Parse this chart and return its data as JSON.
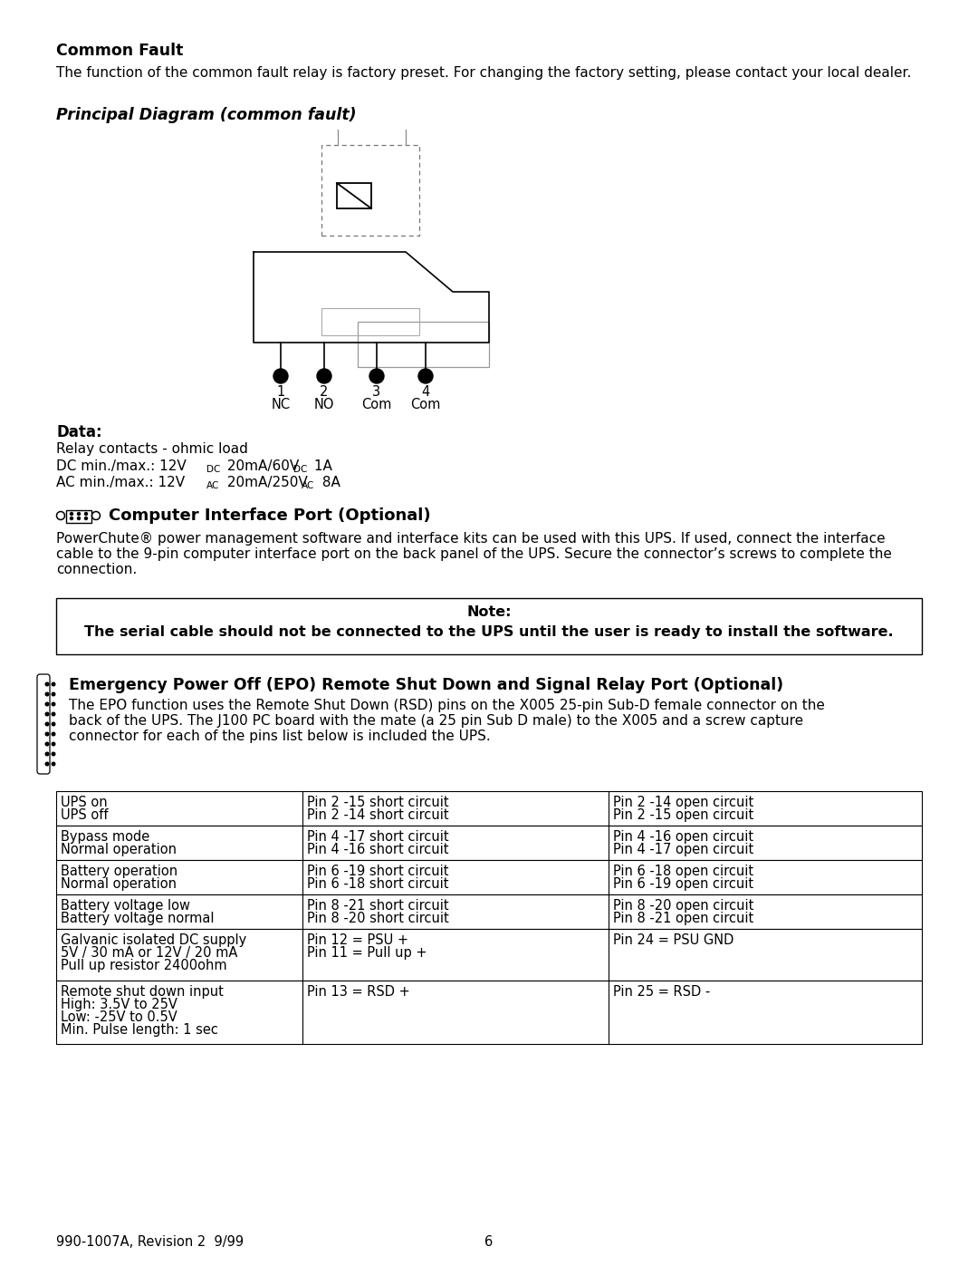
{
  "title": "Common Fault",
  "subtitle": "The function of the common fault relay is factory preset. For changing the factory setting, please contact your local dealer.",
  "section2_title": "Principal Diagram (common fault)",
  "data_section_title": "Data:",
  "computer_section_title": "Computer Interface Port (Optional)",
  "computer_text_line1": "PowerChute® power management software and interface kits can be used with this UPS. If used, connect the interface",
  "computer_text_line2": "cable to the 9-pin computer interface port on the back panel of the UPS. Secure the connector’s screws to complete the",
  "computer_text_line3": "connection.",
  "note_label": "Note:",
  "note_text": "The serial cable should not be connected to the UPS until the user is ready to install the software.",
  "epo_title": "Emergency Power Off (EPO) Remote Shut Down and Signal Relay Port (Optional)",
  "epo_text_line1": "The EPO function uses the Remote Shut Down (RSD) pins on the X005 25-pin Sub-D female connector on the",
  "epo_text_line2": "back of the UPS. The J100 PC board with the mate (a 25 pin Sub D male) to the X005 and a screw capture",
  "epo_text_line3": "connector for each of the pins list below is included the UPS.",
  "table_data": [
    [
      "UPS on\nUPS off",
      "Pin 2 -15 short circuit\nPin 2 -14 short circuit",
      "Pin 2 -14 open circuit\nPin 2 -15 open circuit"
    ],
    [
      "Bypass mode\nNormal operation",
      "Pin 4 -17 short circuit\nPin 4 -16 short circuit",
      "Pin 4 -16 open circuit\nPin 4 -17 open circuit"
    ],
    [
      "Battery operation\nNormal operation",
      "Pin 6 -19 short circuit\nPin 6 -18 short circuit",
      "Pin 6 -18 open circuit\nPin 6 -19 open circuit"
    ],
    [
      "Battery voltage low\nBattery voltage normal",
      "Pin 8 -21 short circuit\nPin 8 -20 short circuit",
      "Pin 8 -20 open circuit\nPin 8 -21 open circuit"
    ],
    [
      "Galvanic isolated DC supply\n5V / 30 mA or 12V / 20 mA\nPull up resistor 2400ohm",
      "Pin 12 = PSU +\nPin 11 = Pull up +",
      "Pin 24 = PSU GND\n"
    ],
    [
      "Remote shut down input\nHigh: 3.5V to 25V\nLow: -25V to 0.5V\nMin. Pulse length: 1 sec",
      "Pin 13 = RSD +",
      "Pin 25 = RSD -"
    ]
  ],
  "footer": "990-1007A, Revision 2  9/99",
  "page_num": "6"
}
